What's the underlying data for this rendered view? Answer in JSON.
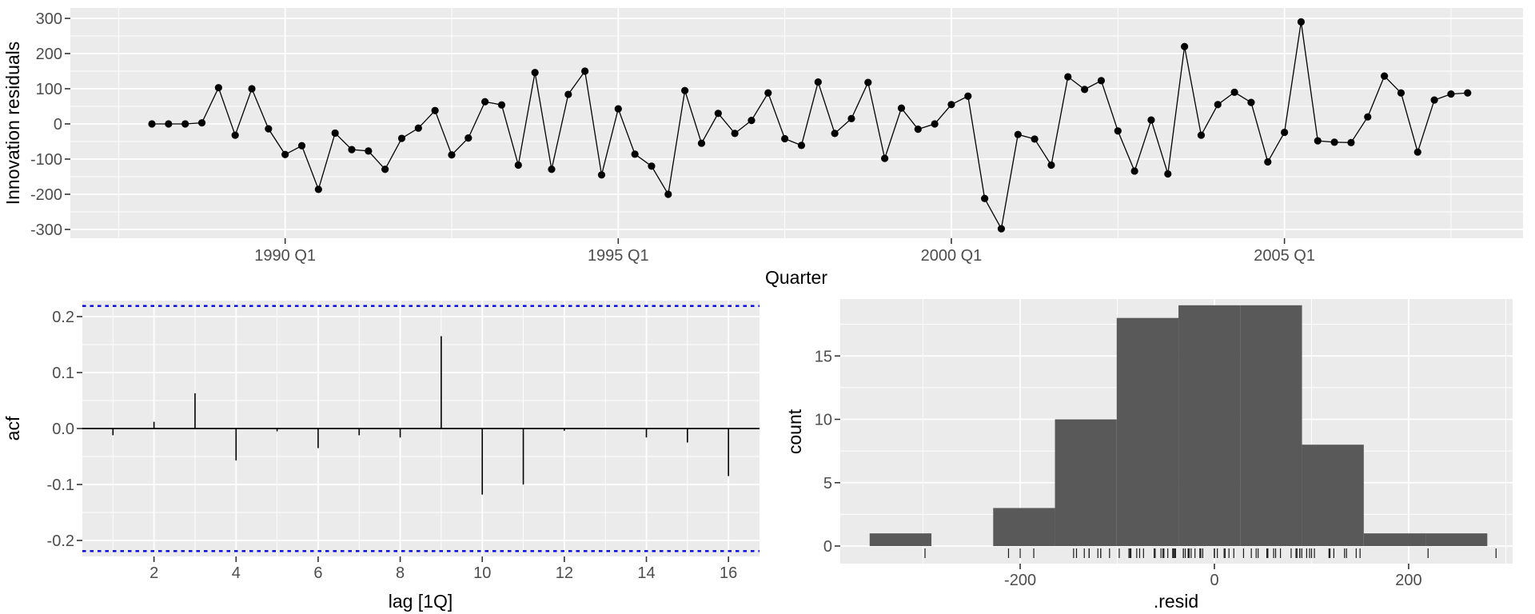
{
  "figure": {
    "background": "#ffffff",
    "panel_background": "#ebebeb",
    "grid_color": "#ffffff",
    "axis_text_color": "#4d4d4d",
    "tick_mark_color": "#333333",
    "series_color": "#000000",
    "histogram_bar_color": "#595959",
    "acf_conf_line_color": "#0000dd"
  },
  "chart_data": [
    {
      "id": "innovation-residuals-series",
      "type": "line",
      "xlabel": "Quarter",
      "ylabel": "Innovation residuals",
      "x_start": "1988 Q1",
      "x_end": "2007 Q4",
      "frequency": "quarterly",
      "x_tick_labels": [
        "1990 Q1",
        "1995 Q1",
        "2000 Q1",
        "2005 Q1"
      ],
      "x_tick_indices": [
        8,
        28,
        48,
        68
      ],
      "x_minor_indices": [
        -2,
        18,
        38,
        58,
        78
      ],
      "y_ticks": [
        300,
        200,
        100,
        0,
        -100,
        -200,
        -300
      ],
      "y_minor": [
        250,
        150,
        50,
        -50,
        -150,
        -250
      ],
      "ylim": [
        -327,
        327
      ],
      "grid": true,
      "legend": "none",
      "values": [
        0,
        0,
        0,
        3,
        103,
        -32,
        100,
        -14,
        -87,
        -62,
        -186,
        -26,
        -73,
        -77,
        -129,
        -41,
        -12,
        38,
        -88,
        -40,
        63,
        54,
        -117,
        146,
        -129,
        84,
        150,
        -145,
        43,
        -86,
        -120,
        -200,
        95,
        -55,
        30,
        -27,
        10,
        88,
        -42,
        -61,
        119,
        -27,
        15,
        118,
        -98,
        45,
        -15,
        0,
        55,
        79,
        -212,
        -298,
        -30,
        -43,
        -117,
        134,
        98,
        123,
        -20,
        -134,
        11,
        -142,
        220,
        -32,
        55,
        90,
        61,
        -108,
        -24,
        290,
        -48,
        -52,
        -53,
        20,
        136,
        88,
        -80,
        68,
        85,
        88
      ]
    },
    {
      "id": "acf",
      "type": "bar",
      "xlabel": "lag [1Q]",
      "ylabel": "acf",
      "x_ticks": [
        2,
        4,
        6,
        8,
        10,
        12,
        14,
        16
      ],
      "x_minor": [
        1,
        3,
        5,
        7,
        9,
        11,
        13,
        15
      ],
      "y_ticks": [
        "0.2",
        "0.1",
        "0.0",
        "-0.1",
        "-0.2"
      ],
      "y_tick_values": [
        0.2,
        0.1,
        0.0,
        -0.1,
        -0.2
      ],
      "y_minor": [
        0.15,
        0.05,
        -0.05,
        -0.15
      ],
      "ylim": [
        -0.2285,
        0.2285
      ],
      "lags": [
        1,
        2,
        3,
        4,
        5,
        6,
        7,
        8,
        9,
        10,
        11,
        12,
        13,
        14,
        15,
        16
      ],
      "values": [
        -0.012,
        0.012,
        0.063,
        -0.057,
        -0.005,
        -0.035,
        -0.012,
        -0.016,
        0.165,
        -0.118,
        -0.1,
        -0.004,
        0.001,
        -0.016,
        -0.025,
        -0.085
      ],
      "conf_bound": 0.219,
      "conf_style": "dashed",
      "grid": true
    },
    {
      "id": "residual-histogram",
      "type": "histogram",
      "xlabel": ".resid",
      "ylabel": "count",
      "x_ticks": [
        -200,
        0,
        200
      ],
      "x_minor": [
        -300,
        -100,
        100,
        300
      ],
      "y_ticks": [
        0,
        5,
        10,
        15
      ],
      "y_minor": [
        2.5,
        7.5,
        12.5,
        17.5
      ],
      "ylim": [
        0,
        19.5
      ],
      "bin_start": -355,
      "bin_width": 63.6,
      "counts": [
        1,
        0,
        3,
        10,
        18,
        19,
        19,
        8,
        1,
        1
      ],
      "total_observations": 80,
      "rug": true,
      "grid": true
    }
  ]
}
